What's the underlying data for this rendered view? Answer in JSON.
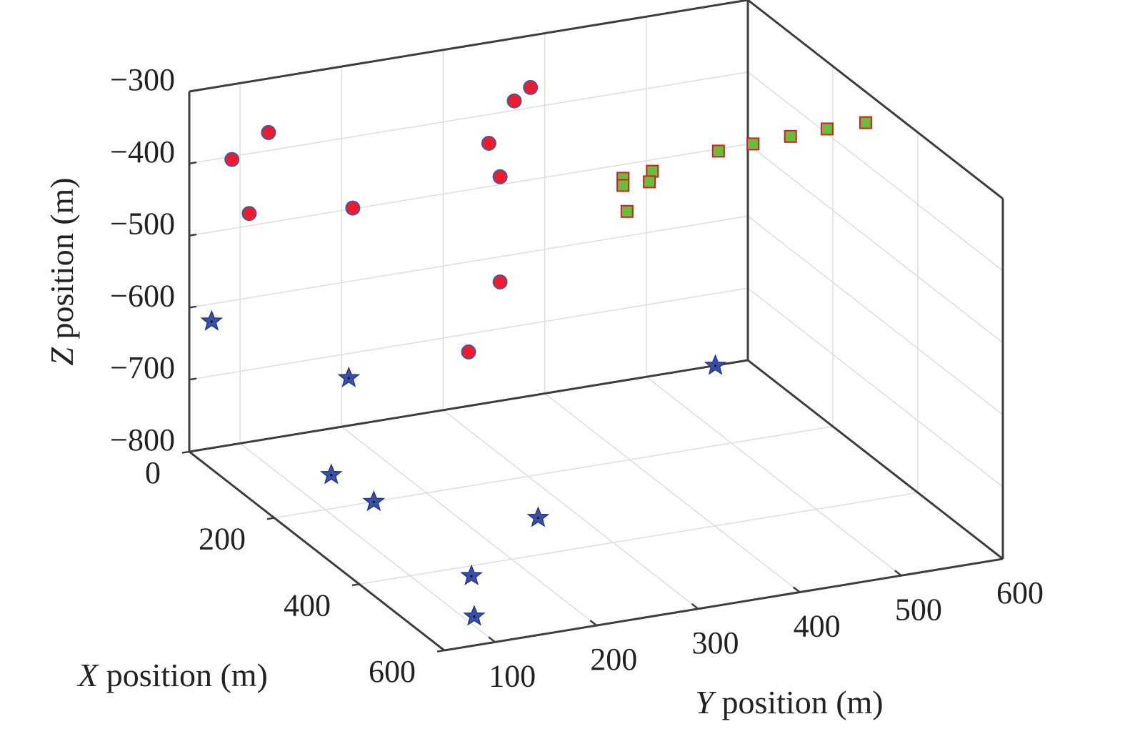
{
  "chart_data": {
    "type": "scatter3d",
    "title": "",
    "xlabel": {
      "var": "X",
      "text": " position (m)"
    },
    "ylabel": {
      "var": "Y",
      "text": " position (m)"
    },
    "zlabel": {
      "var": "Z",
      "text": " position (m)"
    },
    "xlim": [
      0,
      600
    ],
    "ylim": [
      50,
      600
    ],
    "zlim": [
      -800,
      -300
    ],
    "xticks": [
      0,
      200,
      400,
      600
    ],
    "yticks": [
      100,
      200,
      300,
      400,
      500,
      600
    ],
    "zticks": [
      -300,
      -400,
      -500,
      -600,
      -700,
      -800
    ],
    "xtick_labels": [
      "0",
      "200",
      "400",
      "600"
    ],
    "ytick_labels": [
      "100",
      "200",
      "300",
      "400",
      "500",
      "600"
    ],
    "ztick_labels": [
      "−300",
      "−400",
      "−500",
      "−600",
      "−700",
      "−800"
    ],
    "grid": true,
    "series": [
      {
        "marker": "star",
        "color": "#3a4fa8",
        "points": [
          {
            "x": 0,
            "y": 72,
            "z": -624
          },
          {
            "x": 12,
            "y": 202,
            "z": -727
          },
          {
            "x": 119,
            "y": 140,
            "z": -798
          },
          {
            "x": 200,
            "y": 148,
            "z": -800
          },
          {
            "x": 307,
            "y": 265,
            "z": -800
          },
          {
            "x": 425,
            "y": 150,
            "z": -800
          },
          {
            "x": 527,
            "y": 110,
            "z": -800
          },
          {
            "x": 0,
            "y": 568,
            "z": -800
          }
        ]
      },
      {
        "marker": "circle",
        "color": "#ee1c2c",
        "points": [
          {
            "x": 0,
            "y": 92,
            "z": -404
          },
          {
            "x": 0,
            "y": 128,
            "z": -375
          },
          {
            "x": 0,
            "y": 109,
            "z": -483
          },
          {
            "x": 0,
            "y": 211,
            "z": -499
          },
          {
            "x": 0,
            "y": 345,
            "z": -440
          },
          {
            "x": 0,
            "y": 370,
            "z": -387
          },
          {
            "x": 0,
            "y": 386,
            "z": -372
          },
          {
            "x": 0,
            "y": 356,
            "z": -489
          },
          {
            "x": 0,
            "y": 356,
            "z": -635
          },
          {
            "x": 0,
            "y": 325,
            "z": -725
          }
        ]
      },
      {
        "marker": "square",
        "color": "#6cbb3c",
        "points": [
          {
            "x": 0,
            "y": 477,
            "z": -519
          },
          {
            "x": 0,
            "y": 477,
            "z": -529
          },
          {
            "x": 0,
            "y": 506,
            "z": -516
          },
          {
            "x": 0,
            "y": 503,
            "z": -530
          },
          {
            "x": 0,
            "y": 481,
            "z": -566
          },
          {
            "x": 0,
            "y": 571,
            "z": -503
          },
          {
            "x": 0,
            "y": 605,
            "z": -501
          },
          {
            "x": 0,
            "y": 642,
            "z": -499
          },
          {
            "x": 0,
            "y": 678,
            "z": -497
          },
          {
            "x": 0,
            "y": 716,
            "z": -497
          }
        ]
      }
    ]
  }
}
